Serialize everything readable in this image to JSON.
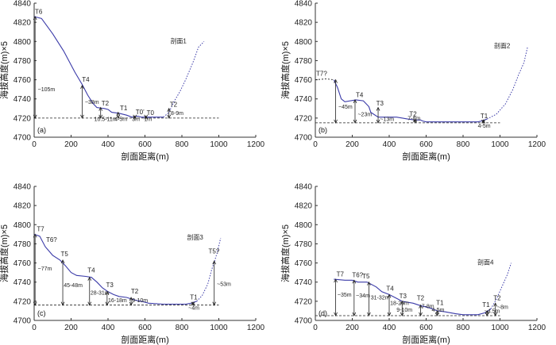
{
  "chart_data": [
    {
      "type": "line",
      "panel_letter": "(a)",
      "title": "剖面1",
      "xlabel": "剖面距离(m)",
      "ylabel": "海拔高度(m)×5",
      "xlim": [
        0,
        1200
      ],
      "ylim": [
        4700,
        4840
      ],
      "xticks": [
        "0",
        "200",
        "400",
        "600",
        "800",
        "1000",
        "1200"
      ],
      "yticks": [
        "4700",
        "4720",
        "4740",
        "4760",
        "4780",
        "4800",
        "4820",
        "4840"
      ],
      "baseline": 4720,
      "profile": {
        "solid": [
          [
            0,
            4826
          ],
          [
            40,
            4824
          ],
          [
            100,
            4808
          ],
          [
            160,
            4790
          ],
          [
            220,
            4768
          ],
          [
            260,
            4755
          ],
          [
            290,
            4744
          ],
          [
            320,
            4735
          ],
          [
            340,
            4731
          ],
          [
            380,
            4730
          ],
          [
            400,
            4729
          ],
          [
            420,
            4726
          ],
          [
            460,
            4725
          ],
          [
            500,
            4723
          ],
          [
            530,
            4721
          ],
          [
            560,
            4722
          ],
          [
            580,
            4721
          ],
          [
            620,
            4721
          ],
          [
            660,
            4721
          ],
          [
            700,
            4721
          ]
        ],
        "dashed": [
          [
            700,
            4721
          ],
          [
            730,
            4726
          ],
          [
            760,
            4738
          ],
          [
            790,
            4748
          ],
          [
            820,
            4760
          ],
          [
            860,
            4778
          ],
          [
            890,
            4794
          ],
          [
            920,
            4800
          ]
        ]
      },
      "terrace_labels": [
        {
          "text": "T6",
          "x": 0,
          "y": 4829
        },
        {
          "text": "T4",
          "x": 255,
          "y": 4758
        },
        {
          "text": "T2",
          "x": 360,
          "y": 4733
        },
        {
          "text": "T1",
          "x": 460,
          "y": 4728
        },
        {
          "text": "T0’",
          "x": 545,
          "y": 4724
        },
        {
          "text": "T0",
          "x": 605,
          "y": 4723
        },
        {
          "text": "T2",
          "x": 730,
          "y": 4732
        }
      ],
      "height_marks": [
        {
          "x": 5,
          "top": 4826,
          "text": "~105m",
          "tx": 20,
          "ty": 4748
        },
        {
          "x": 260,
          "top": 4754,
          "text": "~38m",
          "tx": 275,
          "ty": 4735
        },
        {
          "x": 360,
          "top": 4731,
          "text": "10.5-11m",
          "tx": 325,
          "ty": 4717
        },
        {
          "x": 455,
          "top": 4726,
          "text": "4-5m",
          "tx": 435,
          "ty": 4717
        },
        {
          "x": 545,
          "top": 4722,
          "text": "3m",
          "tx": 530,
          "ty": 4717
        },
        {
          "x": 605,
          "top": 4722,
          "text": "1m",
          "tx": 595,
          "ty": 4717
        },
        {
          "x": 730,
          "top": 4730,
          "text": "8-9m",
          "tx": 740,
          "ty": 4723
        }
      ]
    },
    {
      "type": "line",
      "panel_letter": "(b)",
      "title": "剖面2",
      "xlabel": "剖面距离(m)",
      "ylabel": "海拔高度(m)×5",
      "xlim": [
        0,
        1200
      ],
      "ylim": [
        4700,
        4840
      ],
      "xticks": [
        "0",
        "200",
        "400",
        "600",
        "800",
        "1000",
        "1200"
      ],
      "yticks": [
        "4700",
        "4720",
        "4740",
        "4760",
        "4780",
        "4800",
        "4820",
        "4840"
      ],
      "baseline": 4715,
      "profile": {
        "dashed_left": [
          [
            0,
            4760
          ],
          [
            60,
            4761
          ],
          [
            100,
            4760
          ]
        ],
        "solid": [
          [
            100,
            4760
          ],
          [
            120,
            4752
          ],
          [
            140,
            4740
          ],
          [
            160,
            4737
          ],
          [
            220,
            4739
          ],
          [
            260,
            4738
          ],
          [
            290,
            4732
          ],
          [
            300,
            4726
          ],
          [
            340,
            4721
          ],
          [
            380,
            4721
          ],
          [
            440,
            4721
          ],
          [
            500,
            4719
          ],
          [
            540,
            4718
          ],
          [
            570,
            4718
          ],
          [
            580,
            4717
          ],
          [
            600,
            4716
          ],
          [
            700,
            4716
          ],
          [
            800,
            4716
          ],
          [
            880,
            4716
          ],
          [
            900,
            4717
          ],
          [
            930,
            4719
          ]
        ],
        "dashed": [
          [
            930,
            4719
          ],
          [
            980,
            4724
          ],
          [
            1030,
            4735
          ],
          [
            1070,
            4750
          ],
          [
            1100,
            4765
          ],
          [
            1130,
            4778
          ],
          [
            1150,
            4795
          ]
        ]
      },
      "terrace_labels": [
        {
          "text": "T7?",
          "x": 0,
          "y": 4764
        },
        {
          "text": "T4",
          "x": 215,
          "y": 4742
        },
        {
          "text": "T3",
          "x": 325,
          "y": 4733
        },
        {
          "text": "T2",
          "x": 505,
          "y": 4722
        },
        {
          "text": "T1",
          "x": 890,
          "y": 4720
        }
      ],
      "height_marks": [
        {
          "x": 110,
          "top": 4760,
          "text": "~45m",
          "tx": 125,
          "ty": 4730
        },
        {
          "x": 215,
          "top": 4739,
          "text": "~23m",
          "tx": 230,
          "ty": 4722
        },
        {
          "x": 340,
          "top": 4731,
          "text": "~13m",
          "tx": 350,
          "ty": 4717
        },
        {
          "x": 540,
          "top": 4719,
          "text": "7-8m",
          "tx": 500,
          "ty": 4718
        },
        {
          "x": 910,
          "top": 4718,
          "text": "4-5m",
          "tx": 880,
          "ty": 4710
        }
      ]
    },
    {
      "type": "line",
      "panel_letter": "(c)",
      "title": "剖面3",
      "xlabel": "剖面距离(m)",
      "ylabel": "海拔高度(m)×5",
      "xlim": [
        0,
        1200
      ],
      "ylim": [
        4700,
        4840
      ],
      "xticks": [
        "0",
        "200",
        "400",
        "600",
        "800",
        "1000",
        "1200"
      ],
      "yticks": [
        "4700",
        "4720",
        "4740",
        "4760",
        "4780",
        "4800",
        "4820",
        "4840"
      ],
      "baseline": 4716,
      "profile": {
        "solid": [
          [
            0,
            4790
          ],
          [
            30,
            4788
          ],
          [
            60,
            4777
          ],
          [
            100,
            4768
          ],
          [
            140,
            4763
          ],
          [
            170,
            4757
          ],
          [
            200,
            4750
          ],
          [
            230,
            4747
          ],
          [
            280,
            4746
          ],
          [
            310,
            4745
          ],
          [
            340,
            4740
          ],
          [
            370,
            4734
          ],
          [
            400,
            4730
          ],
          [
            430,
            4727
          ],
          [
            460,
            4725
          ],
          [
            500,
            4724
          ],
          [
            550,
            4721
          ],
          [
            580,
            4720
          ],
          [
            620,
            4718
          ],
          [
            700,
            4717
          ],
          [
            760,
            4717
          ],
          [
            820,
            4717
          ],
          [
            850,
            4718
          ],
          [
            880,
            4720
          ]
        ],
        "dashed": [
          [
            880,
            4720
          ],
          [
            910,
            4726
          ],
          [
            940,
            4738
          ],
          [
            960,
            4752
          ],
          [
            990,
            4770
          ],
          [
            1010,
            4786
          ]
        ]
      },
      "terrace_labels": [
        {
          "text": "T7",
          "x": 10,
          "y": 4793
        },
        {
          "text": "T6?",
          "x": 60,
          "y": 4782
        },
        {
          "text": "T5",
          "x": 140,
          "y": 4767
        },
        {
          "text": "T4",
          "x": 285,
          "y": 4750
        },
        {
          "text": "T3",
          "x": 385,
          "y": 4735
        },
        {
          "text": "T2",
          "x": 520,
          "y": 4728
        },
        {
          "text": "T1",
          "x": 840,
          "y": 4722
        },
        {
          "text": "T5?",
          "x": 940,
          "y": 4770
        }
      ],
      "height_marks": [
        {
          "x": 5,
          "top": 4790,
          "text": "~77m",
          "tx": 20,
          "ty": 4752
        },
        {
          "x": 155,
          "top": 4763,
          "text": "45-48m",
          "tx": 160,
          "ty": 4735
        },
        {
          "x": 300,
          "top": 4745,
          "text": "28-31m",
          "tx": 305,
          "ty": 4727
        },
        {
          "x": 395,
          "top": 4730,
          "text": "16-18m",
          "tx": 400,
          "ty": 4719
        },
        {
          "x": 525,
          "top": 4724,
          "text": "9-10m",
          "tx": 530,
          "ty": 4719
        },
        {
          "x": 860,
          "top": 4719,
          "text": "~4m",
          "tx": 835,
          "ty": 4711
        },
        {
          "x": 975,
          "top": 4762,
          "text": "~53m",
          "tx": 990,
          "ty": 4736
        }
      ]
    },
    {
      "type": "line",
      "panel_letter": "(d)",
      "title": "剖面4",
      "xlabel": "剖面距离(m)",
      "ylabel": "海拔高度(m)×5",
      "xlim": [
        0,
        1200
      ],
      "ylim": [
        4700,
        4840
      ],
      "xticks": [
        "0",
        "200",
        "400",
        "600",
        "800",
        "1000",
        "1200"
      ],
      "yticks": [
        "4700",
        "4720",
        "4740",
        "4760",
        "4780",
        "4800",
        "4820",
        "4840"
      ],
      "baseline": 4705,
      "profile": {
        "solid": [
          [
            100,
            4743
          ],
          [
            160,
            4742
          ],
          [
            200,
            4742
          ],
          [
            230,
            4740
          ],
          [
            280,
            4740
          ],
          [
            330,
            4735
          ],
          [
            360,
            4730
          ],
          [
            400,
            4727
          ],
          [
            430,
            4724
          ],
          [
            470,
            4720
          ],
          [
            530,
            4718
          ],
          [
            560,
            4716
          ],
          [
            620,
            4713
          ],
          [
            660,
            4710
          ],
          [
            700,
            4709
          ],
          [
            760,
            4707
          ],
          [
            800,
            4706
          ],
          [
            880,
            4706
          ],
          [
            920,
            4708
          ],
          [
            950,
            4712
          ]
        ],
        "dashed": [
          [
            950,
            4712
          ],
          [
            980,
            4722
          ],
          [
            1010,
            4735
          ],
          [
            1040,
            4748
          ],
          [
            1060,
            4760
          ]
        ]
      },
      "terrace_labels": [
        {
          "text": "T7",
          "x": 110,
          "y": 4746
        },
        {
          "text": "T6?",
          "x": 195,
          "y": 4745
        },
        {
          "text": "T5",
          "x": 250,
          "y": 4744
        },
        {
          "text": "T4",
          "x": 380,
          "y": 4731
        },
        {
          "text": "T3",
          "x": 450,
          "y": 4723
        },
        {
          "text": "T2",
          "x": 545,
          "y": 4721
        },
        {
          "text": "T1",
          "x": 650,
          "y": 4716
        },
        {
          "text": "T1",
          "x": 900,
          "y": 4714
        },
        {
          "text": "T2",
          "x": 960,
          "y": 4721
        }
      ],
      "height_marks": [
        {
          "x": 110,
          "top": 4743,
          "text": "~35m",
          "tx": 120,
          "ty": 4725
        },
        {
          "x": 210,
          "top": 4742,
          "text": "~34m",
          "tx": 220,
          "ty": 4724
        },
        {
          "x": 290,
          "top": 4740,
          "text": "31-32m",
          "tx": 300,
          "ty": 4722
        },
        {
          "x": 400,
          "top": 4727,
          "text": "18-20m",
          "tx": 405,
          "ty": 4716
        },
        {
          "x": 470,
          "top": 4720,
          "text": "9-10m",
          "tx": 440,
          "ty": 4709
        },
        {
          "x": 570,
          "top": 4716,
          "text": "7-8m",
          "tx": 575,
          "ty": 4713
        },
        {
          "x": 660,
          "top": 4710,
          "text": "4-5m",
          "tx": 630,
          "ty": 4709
        },
        {
          "x": 930,
          "top": 4710,
          "text": "~4.5m",
          "tx": 915,
          "ty": 4708
        },
        {
          "x": 975,
          "top": 4718,
          "text": "~8m",
          "tx": 985,
          "ty": 4712
        }
      ]
    }
  ]
}
